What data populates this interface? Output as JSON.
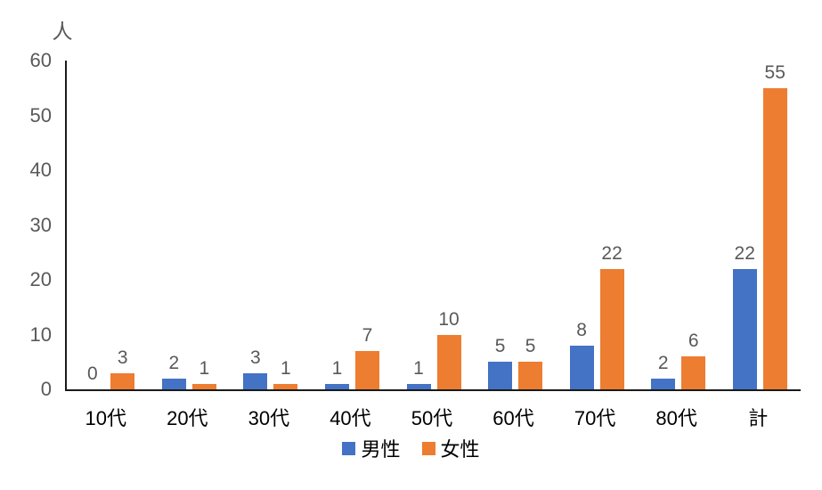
{
  "chart_data": {
    "type": "bar",
    "title": "",
    "ylabel": "人",
    "xlabel": "",
    "categories": [
      "10代",
      "20代",
      "30代",
      "40代",
      "50代",
      "60代",
      "70代",
      "80代",
      "計"
    ],
    "series": [
      {
        "name": "男性",
        "color": "#4472C4",
        "values": [
          0,
          2,
          3,
          1,
          1,
          5,
          8,
          2,
          22
        ]
      },
      {
        "name": "女性",
        "color": "#ED7D31",
        "values": [
          3,
          1,
          1,
          7,
          10,
          5,
          22,
          6,
          55
        ]
      }
    ],
    "ylim": [
      0,
      60
    ],
    "ytick_step": 10,
    "yticks": [
      0,
      10,
      20,
      30,
      40,
      50,
      60
    ],
    "grid": false,
    "value_labels_shown": true,
    "legend_position": "bottom"
  },
  "colors": {
    "male_bar": "#4472C4",
    "female_bar": "#ED7D31",
    "axis_line": "#1a1a1a",
    "tick_label_text": "#595959",
    "value_label_text": "#595959",
    "category_label_text": "#000000",
    "background": "#ffffff"
  }
}
